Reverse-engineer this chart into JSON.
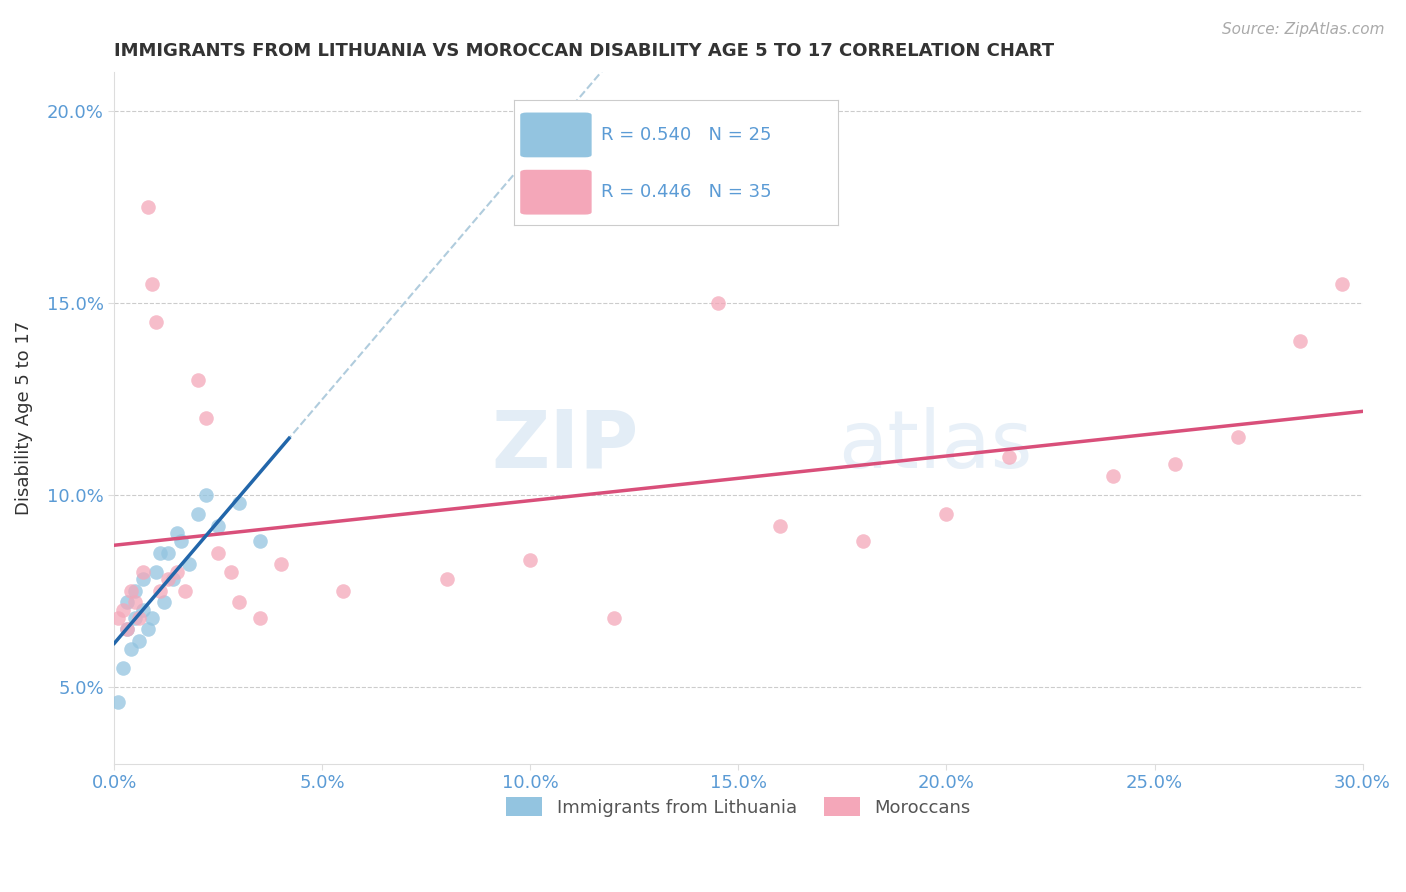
{
  "title": "IMMIGRANTS FROM LITHUANIA VS MOROCCAN DISABILITY AGE 5 TO 17 CORRELATION CHART",
  "source": "Source: ZipAtlas.com",
  "ylabel": "Disability Age 5 to 17",
  "xlim": [
    0.0,
    0.3
  ],
  "ylim": [
    0.03,
    0.21
  ],
  "xticks": [
    0.0,
    0.05,
    0.1,
    0.15,
    0.2,
    0.25,
    0.3
  ],
  "yticks": [
    0.05,
    0.1,
    0.15,
    0.2
  ],
  "ytick_labels": [
    "5.0%",
    "10.0%",
    "15.0%",
    "20.0%"
  ],
  "xtick_labels": [
    "0.0%",
    "5.0%",
    "10.0%",
    "15.0%",
    "20.0%",
    "25.0%",
    "30.0%"
  ],
  "legend_R1": "R = 0.540",
  "legend_N1": "N = 25",
  "legend_R2": "R = 0.446",
  "legend_N2": "N = 35",
  "color_blue": "#93c4e0",
  "color_pink": "#f4a7b9",
  "color_blue_line": "#2266aa",
  "color_pink_line": "#d94f7a",
  "color_blue_dashed": "#b0ccdd",
  "blue_scatter_x": [
    0.001,
    0.002,
    0.003,
    0.003,
    0.004,
    0.005,
    0.005,
    0.006,
    0.007,
    0.007,
    0.008,
    0.009,
    0.01,
    0.011,
    0.012,
    0.013,
    0.014,
    0.015,
    0.016,
    0.018,
    0.02,
    0.022,
    0.025,
    0.03,
    0.035
  ],
  "blue_scatter_y": [
    0.046,
    0.055,
    0.065,
    0.072,
    0.06,
    0.068,
    0.075,
    0.062,
    0.07,
    0.078,
    0.065,
    0.068,
    0.08,
    0.085,
    0.072,
    0.085,
    0.078,
    0.09,
    0.088,
    0.082,
    0.095,
    0.1,
    0.092,
    0.098,
    0.088
  ],
  "pink_scatter_x": [
    0.001,
    0.002,
    0.003,
    0.004,
    0.005,
    0.006,
    0.007,
    0.008,
    0.009,
    0.01,
    0.011,
    0.013,
    0.015,
    0.017,
    0.02,
    0.022,
    0.025,
    0.028,
    0.03,
    0.035,
    0.04,
    0.055,
    0.08,
    0.1,
    0.12,
    0.145,
    0.16,
    0.18,
    0.2,
    0.215,
    0.24,
    0.255,
    0.27,
    0.285,
    0.295
  ],
  "pink_scatter_y": [
    0.068,
    0.07,
    0.065,
    0.075,
    0.072,
    0.068,
    0.08,
    0.175,
    0.155,
    0.145,
    0.075,
    0.078,
    0.08,
    0.075,
    0.13,
    0.12,
    0.085,
    0.08,
    0.072,
    0.068,
    0.082,
    0.075,
    0.078,
    0.083,
    0.068,
    0.15,
    0.092,
    0.088,
    0.095,
    0.11,
    0.105,
    0.108,
    0.115,
    0.14,
    0.155
  ],
  "watermark_zip": "ZIP",
  "watermark_atlas": "atlas",
  "background_color": "#ffffff",
  "grid_color": "#cccccc",
  "title_color": "#333333",
  "axis_label_color": "#333333",
  "tick_color": "#5b9bd5"
}
